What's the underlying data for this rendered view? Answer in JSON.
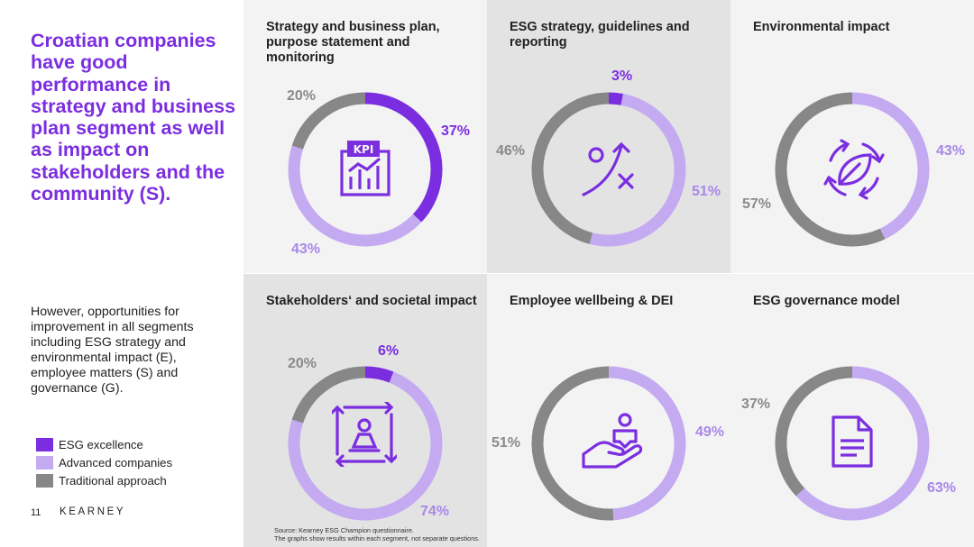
{
  "headline": "Croatian companies have good performance in strategy and business plan segment as well as impact on stakeholders and the community (S).",
  "body_text": "However, opportunities for improvement in all segments including ESG strategy and environmental impact (E), employee matters (S) and governance (G).",
  "legend": [
    {
      "label": "ESG excellence",
      "color": "#7b2ee0"
    },
    {
      "label": "Advanced companies",
      "color": "#c4aaf0"
    },
    {
      "label": "Traditional approach",
      "color": "#878787"
    }
  ],
  "footer": {
    "page_number": "11",
    "brand": "KEARNEY"
  },
  "source": {
    "line1": "Source: Kearney ESG Champion questionnaire.",
    "line2": "The graphs show results within each segment, not separate questions."
  },
  "colors": {
    "excellence": "#7b2ee0",
    "advanced": "#c4aaf0",
    "traditional": "#878787",
    "panel_light": "#f3f3f4",
    "panel_dark": "#e3e3e4",
    "accent_text": "#7b2ee0",
    "advanced_text": "#a987e8",
    "traditional_text": "#8a8a8a"
  },
  "chart_data": [
    {
      "type": "pie",
      "title": "Strategy and business plan, purpose statement and monitoring",
      "icon": "kpi-dashboard-icon",
      "series": [
        {
          "name": "ESG excellence",
          "value": 37,
          "label": "37%"
        },
        {
          "name": "Advanced companies",
          "value": 43,
          "label": "43%"
        },
        {
          "name": "Traditional approach",
          "value": 20,
          "label": "20%"
        }
      ]
    },
    {
      "type": "pie",
      "title": "ESG strategy, guidelines and reporting",
      "icon": "strategy-play-icon",
      "series": [
        {
          "name": "ESG excellence",
          "value": 3,
          "label": "3%"
        },
        {
          "name": "Advanced companies",
          "value": 51,
          "label": "51%"
        },
        {
          "name": "Traditional approach",
          "value": 46,
          "label": "46%"
        }
      ]
    },
    {
      "type": "pie",
      "title": "Environmental impact",
      "icon": "leaf-cycle-icon",
      "series": [
        {
          "name": "ESG excellence",
          "value": 0,
          "label": ""
        },
        {
          "name": "Advanced companies",
          "value": 43,
          "label": "43%"
        },
        {
          "name": "Traditional approach",
          "value": 57,
          "label": "57%"
        }
      ]
    },
    {
      "type": "pie",
      "title": "Stakeholders‘ and societal impact",
      "icon": "stakeholder-arrows-icon",
      "series": [
        {
          "name": "ESG excellence",
          "value": 6,
          "label": "6%"
        },
        {
          "name": "Advanced companies",
          "value": 74,
          "label": "74%"
        },
        {
          "name": "Traditional approach",
          "value": 20,
          "label": "20%"
        }
      ]
    },
    {
      "type": "pie",
      "title": "Employee wellbeing & DEI",
      "icon": "hand-person-icon",
      "series": [
        {
          "name": "ESG excellence",
          "value": 0,
          "label": ""
        },
        {
          "name": "Advanced companies",
          "value": 49,
          "label": "49%"
        },
        {
          "name": "Traditional approach",
          "value": 51,
          "label": "51%"
        }
      ]
    },
    {
      "type": "pie",
      "title": "ESG governance model",
      "icon": "document-icon",
      "series": [
        {
          "name": "ESG excellence",
          "value": 0,
          "label": ""
        },
        {
          "name": "Advanced companies",
          "value": 63,
          "label": "63%"
        },
        {
          "name": "Traditional approach",
          "value": 37,
          "label": "37%"
        }
      ]
    }
  ]
}
